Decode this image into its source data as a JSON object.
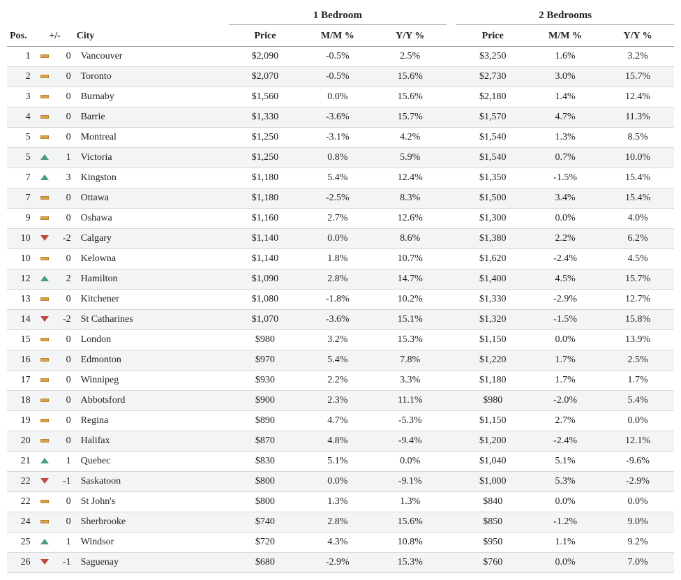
{
  "headers": {
    "group1": "1 Bedroom",
    "group2": "2 Bedrooms",
    "pos": "Pos.",
    "change": "+/-",
    "city": "City",
    "price": "Price",
    "mm": "M/M %",
    "yy": "Y/Y %"
  },
  "rows": [
    {
      "pos": "1",
      "dir": "flat",
      "chg": "0",
      "city": "Vancouver",
      "p1": "$2,090",
      "m1": "-0.5%",
      "y1": "2.5%",
      "p2": "$3,250",
      "m2": "1.6%",
      "y2": "3.2%"
    },
    {
      "pos": "2",
      "dir": "flat",
      "chg": "0",
      "city": "Toronto",
      "p1": "$2,070",
      "m1": "-0.5%",
      "y1": "15.6%",
      "p2": "$2,730",
      "m2": "3.0%",
      "y2": "15.7%"
    },
    {
      "pos": "3",
      "dir": "flat",
      "chg": "0",
      "city": "Burnaby",
      "p1": "$1,560",
      "m1": "0.0%",
      "y1": "15.6%",
      "p2": "$2,180",
      "m2": "1.4%",
      "y2": "12.4%"
    },
    {
      "pos": "4",
      "dir": "flat",
      "chg": "0",
      "city": "Barrie",
      "p1": "$1,330",
      "m1": "-3.6%",
      "y1": "15.7%",
      "p2": "$1,570",
      "m2": "4.7%",
      "y2": "11.3%"
    },
    {
      "pos": "5",
      "dir": "flat",
      "chg": "0",
      "city": "Montreal",
      "p1": "$1,250",
      "m1": "-3.1%",
      "y1": "4.2%",
      "p2": "$1,540",
      "m2": "1.3%",
      "y2": "8.5%"
    },
    {
      "pos": "5",
      "dir": "up",
      "chg": "1",
      "city": "Victoria",
      "p1": "$1,250",
      "m1": "0.8%",
      "y1": "5.9%",
      "p2": "$1,540",
      "m2": "0.7%",
      "y2": "10.0%"
    },
    {
      "pos": "7",
      "dir": "up",
      "chg": "3",
      "city": "Kingston",
      "p1": "$1,180",
      "m1": "5.4%",
      "y1": "12.4%",
      "p2": "$1,350",
      "m2": "-1.5%",
      "y2": "15.4%"
    },
    {
      "pos": "7",
      "dir": "flat",
      "chg": "0",
      "city": "Ottawa",
      "p1": "$1,180",
      "m1": "-2.5%",
      "y1": "8.3%",
      "p2": "$1,500",
      "m2": "3.4%",
      "y2": "15.4%"
    },
    {
      "pos": "9",
      "dir": "flat",
      "chg": "0",
      "city": "Oshawa",
      "p1": "$1,160",
      "m1": "2.7%",
      "y1": "12.6%",
      "p2": "$1,300",
      "m2": "0.0%",
      "y2": "4.0%"
    },
    {
      "pos": "10",
      "dir": "down",
      "chg": "-2",
      "city": "Calgary",
      "p1": "$1,140",
      "m1": "0.0%",
      "y1": "8.6%",
      "p2": "$1,380",
      "m2": "2.2%",
      "y2": "6.2%"
    },
    {
      "pos": "10",
      "dir": "flat",
      "chg": "0",
      "city": "Kelowna",
      "p1": "$1,140",
      "m1": "1.8%",
      "y1": "10.7%",
      "p2": "$1,620",
      "m2": "-2.4%",
      "y2": "4.5%"
    },
    {
      "pos": "12",
      "dir": "up",
      "chg": "2",
      "city": "Hamilton",
      "p1": "$1,090",
      "m1": "2.8%",
      "y1": "14.7%",
      "p2": "$1,400",
      "m2": "4.5%",
      "y2": "15.7%"
    },
    {
      "pos": "13",
      "dir": "flat",
      "chg": "0",
      "city": "Kitchener",
      "p1": "$1,080",
      "m1": "-1.8%",
      "y1": "10.2%",
      "p2": "$1,330",
      "m2": "-2.9%",
      "y2": "12.7%"
    },
    {
      "pos": "14",
      "dir": "down",
      "chg": "-2",
      "city": "St Catharines",
      "p1": "$1,070",
      "m1": "-3.6%",
      "y1": "15.1%",
      "p2": "$1,320",
      "m2": "-1.5%",
      "y2": "15.8%"
    },
    {
      "pos": "15",
      "dir": "flat",
      "chg": "0",
      "city": "London",
      "p1": "$980",
      "m1": "3.2%",
      "y1": "15.3%",
      "p2": "$1,150",
      "m2": "0.0%",
      "y2": "13.9%"
    },
    {
      "pos": "16",
      "dir": "flat",
      "chg": "0",
      "city": "Edmonton",
      "p1": "$970",
      "m1": "5.4%",
      "y1": "7.8%",
      "p2": "$1,220",
      "m2": "1.7%",
      "y2": "2.5%"
    },
    {
      "pos": "17",
      "dir": "flat",
      "chg": "0",
      "city": "Winnipeg",
      "p1": "$930",
      "m1": "2.2%",
      "y1": "3.3%",
      "p2": "$1,180",
      "m2": "1.7%",
      "y2": "1.7%"
    },
    {
      "pos": "18",
      "dir": "flat",
      "chg": "0",
      "city": "Abbotsford",
      "p1": "$900",
      "m1": "2.3%",
      "y1": "11.1%",
      "p2": "$980",
      "m2": "-2.0%",
      "y2": "5.4%"
    },
    {
      "pos": "19",
      "dir": "flat",
      "chg": "0",
      "city": "Regina",
      "p1": "$890",
      "m1": "4.7%",
      "y1": "-5.3%",
      "p2": "$1,150",
      "m2": "2.7%",
      "y2": "0.0%"
    },
    {
      "pos": "20",
      "dir": "flat",
      "chg": "0",
      "city": "Halifax",
      "p1": "$870",
      "m1": "4.8%",
      "y1": "-9.4%",
      "p2": "$1,200",
      "m2": "-2.4%",
      "y2": "12.1%"
    },
    {
      "pos": "21",
      "dir": "up",
      "chg": "1",
      "city": "Quebec",
      "p1": "$830",
      "m1": "5.1%",
      "y1": "0.0%",
      "p2": "$1,040",
      "m2": "5.1%",
      "y2": "-9.6%"
    },
    {
      "pos": "22",
      "dir": "down",
      "chg": "-1",
      "city": "Saskatoon",
      "p1": "$800",
      "m1": "0.0%",
      "y1": "-9.1%",
      "p2": "$1,000",
      "m2": "5.3%",
      "y2": "-2.9%"
    },
    {
      "pos": "22",
      "dir": "flat",
      "chg": "0",
      "city": "St John's",
      "p1": "$800",
      "m1": "1.3%",
      "y1": "1.3%",
      "p2": "$840",
      "m2": "0.0%",
      "y2": "0.0%"
    },
    {
      "pos": "24",
      "dir": "flat",
      "chg": "0",
      "city": "Sherbrooke",
      "p1": "$740",
      "m1": "2.8%",
      "y1": "15.6%",
      "p2": "$850",
      "m2": "-1.2%",
      "y2": "9.0%"
    },
    {
      "pos": "25",
      "dir": "up",
      "chg": "1",
      "city": "Windsor",
      "p1": "$720",
      "m1": "4.3%",
      "y1": "10.8%",
      "p2": "$950",
      "m2": "1.1%",
      "y2": "9.2%"
    },
    {
      "pos": "26",
      "dir": "down",
      "chg": "-1",
      "city": "Saguenay",
      "p1": "$680",
      "m1": "-2.9%",
      "y1": "15.3%",
      "p2": "$760",
      "m2": "0.0%",
      "y2": "7.0%"
    }
  ]
}
